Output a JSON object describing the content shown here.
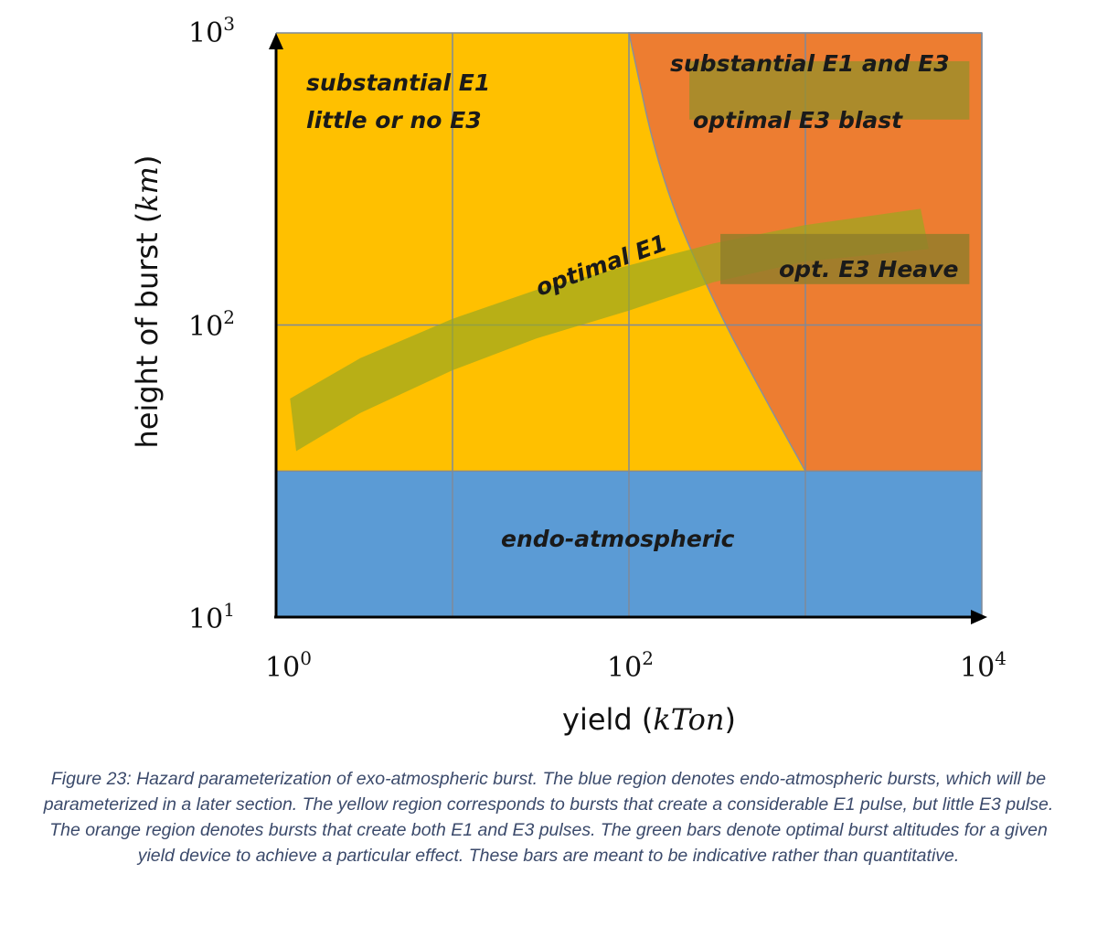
{
  "chart_data": {
    "type": "area",
    "x_scale": "log",
    "y_scale": "log",
    "xlim": [
      1,
      10000
    ],
    "ylim": [
      10,
      1000
    ],
    "grid": true,
    "x_axis": {
      "label": "yield",
      "unit": "kTon",
      "ticks": [
        {
          "value": 1,
          "base": "10",
          "exp": "0"
        },
        {
          "value": 100,
          "base": "10",
          "exp": "2"
        },
        {
          "value": 10000,
          "base": "10",
          "exp": "4"
        }
      ]
    },
    "y_axis": {
      "label": "height of burst",
      "unit": "km",
      "ticks": [
        {
          "value": 10,
          "base": "10",
          "exp": "1"
        },
        {
          "value": 100,
          "base": "10",
          "exp": "2"
        },
        {
          "value": 1000,
          "base": "10",
          "exp": "3"
        }
      ]
    },
    "regions": [
      {
        "id": "endo",
        "color": "#5b9bd5",
        "x_range": [
          1,
          10000
        ],
        "y_range": [
          10,
          31.6
        ]
      },
      {
        "id": "e1",
        "color": "#ffc000",
        "x_range": [
          1,
          10000
        ],
        "y_range": [
          31.6,
          1000
        ]
      },
      {
        "id": "e1e3",
        "color": "#ed7d31",
        "boundary": [
          [
            100,
            1000
          ],
          [
            150,
            320
          ],
          [
            300,
            120
          ],
          [
            600,
            55
          ],
          [
            1000,
            31.6
          ]
        ]
      }
    ],
    "bars": [
      {
        "id": "optimal-e1",
        "color": "#9aa820",
        "opacity": 0.7,
        "upper": [
          [
            1.2,
            56
          ],
          [
            3,
            77
          ],
          [
            10,
            105
          ],
          [
            30,
            132
          ],
          [
            100,
            160
          ],
          [
            300,
            190
          ],
          [
            1000,
            220
          ],
          [
            4500,
            250
          ]
        ],
        "lower": [
          [
            1.3,
            37
          ],
          [
            3,
            50
          ],
          [
            10,
            70
          ],
          [
            30,
            90
          ],
          [
            100,
            112
          ],
          [
            300,
            140
          ],
          [
            1000,
            165
          ],
          [
            5000,
            182
          ]
        ]
      },
      {
        "id": "opt-e3-blast",
        "color": "#9a8f2a",
        "opacity": 0.8,
        "x_range": [
          220,
          8500
        ],
        "y_range": [
          505,
          800
        ]
      },
      {
        "id": "opt-e3-heave",
        "color": "#8e7d2a",
        "opacity": 0.8,
        "x_range": [
          330,
          8500
        ],
        "y_range": [
          138,
          205
        ]
      }
    ],
    "labels": {
      "e1": [
        "substantial E1",
        "little or no E3"
      ],
      "e1e3": "substantial E1 and E3",
      "e3_blast": "optimal E3 blast",
      "e3_heave": "opt. E3 Heave",
      "optimal_e1": "optimal E1",
      "endo": "endo-atmospheric"
    }
  },
  "caption": "Figure 23: Hazard parameterization of exo-atmospheric burst. The blue region denotes endo-atmospheric bursts, which will be parameterized in a later section. The yellow region corresponds to bursts that create a considerable E1 pulse, but little E3 pulse. The orange region denotes bursts that create both E1 and E3 pulses. The green bars denote optimal burst altitudes for a given yield device to achieve a particular effect. These bars are meant to be indicative rather than quantitative."
}
